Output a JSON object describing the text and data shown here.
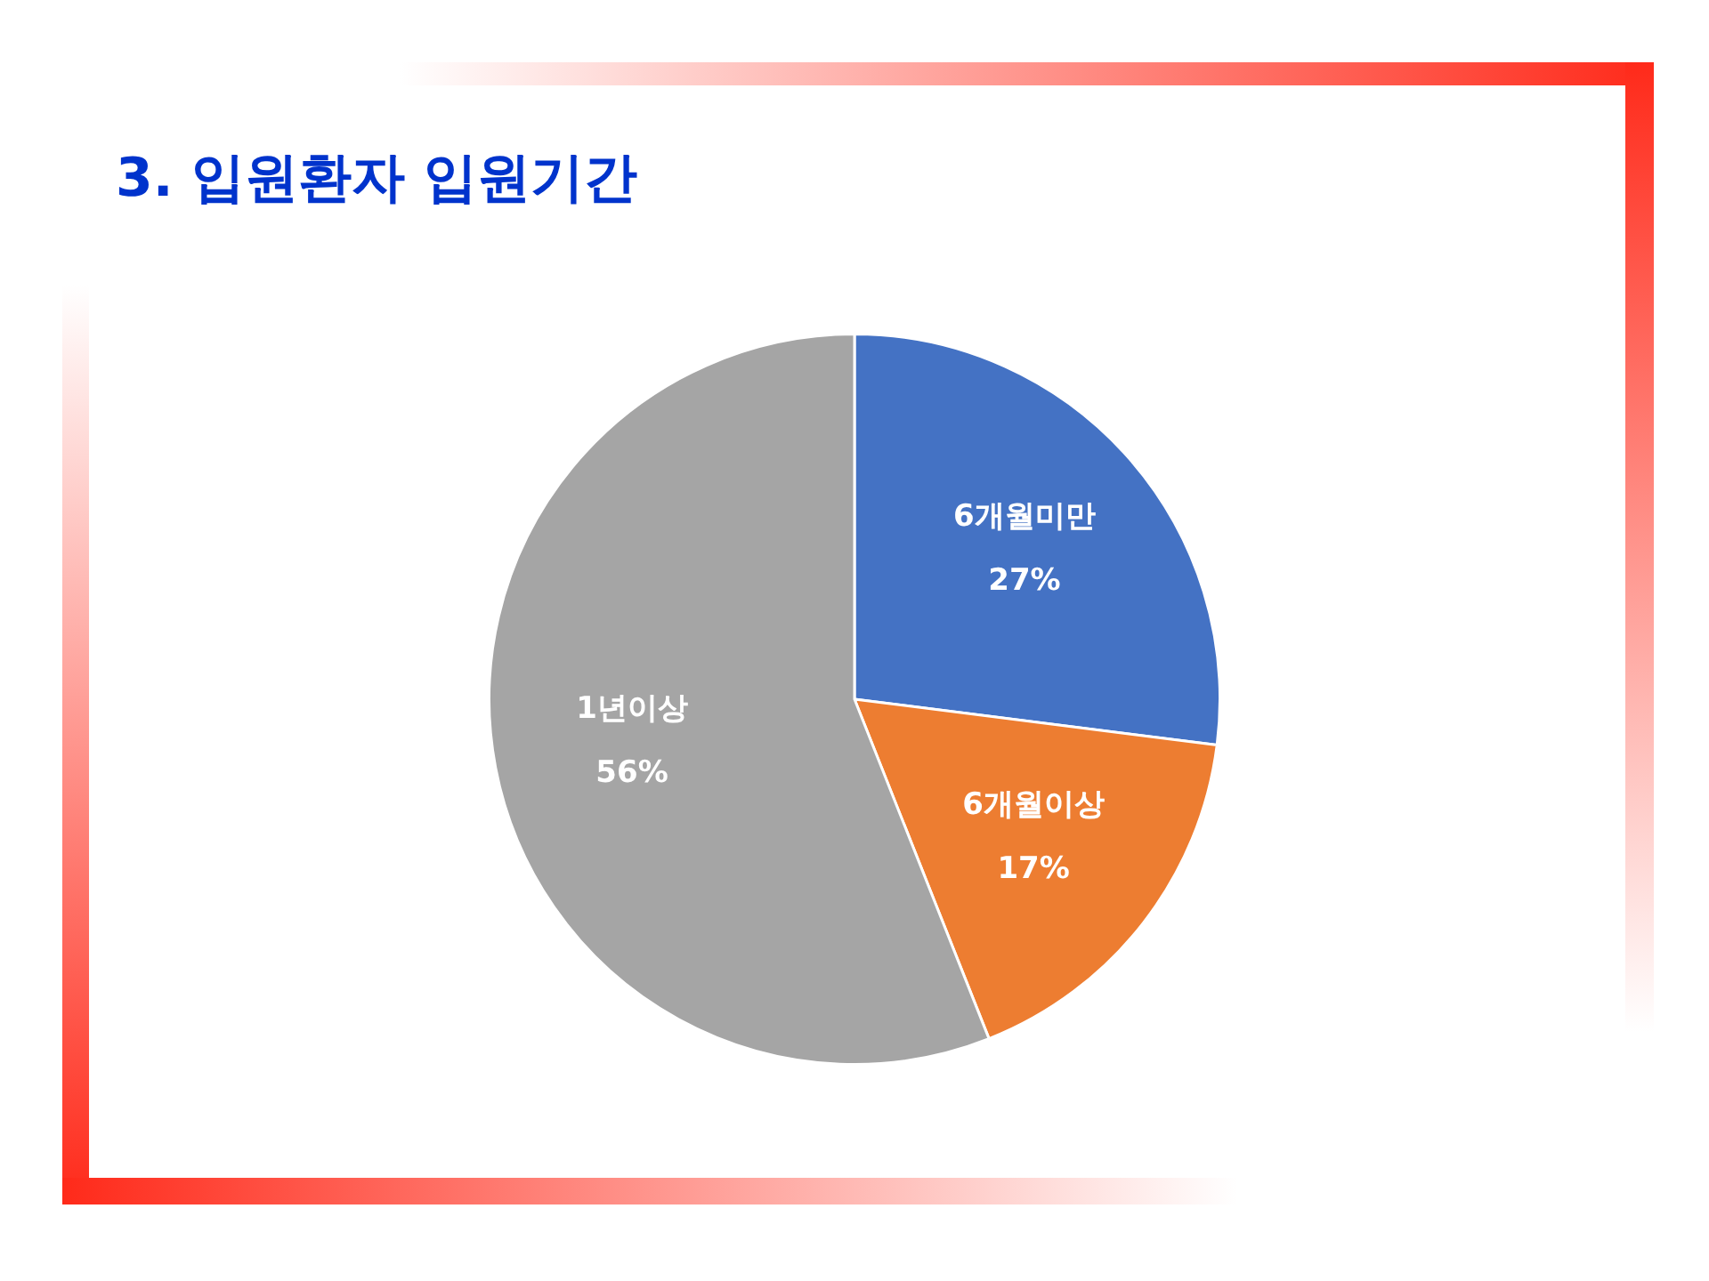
{
  "chart_data": {
    "type": "pie",
    "title": "3. 입원환자 입원기간",
    "categories": [
      "6개월미만",
      "6개월이상",
      "1년이상"
    ],
    "values": [
      27,
      17,
      56
    ],
    "colors": [
      "#4472c4",
      "#ed7d31",
      "#a5a5a5"
    ],
    "value_labels": [
      "27%",
      "17%",
      "56%"
    ]
  }
}
